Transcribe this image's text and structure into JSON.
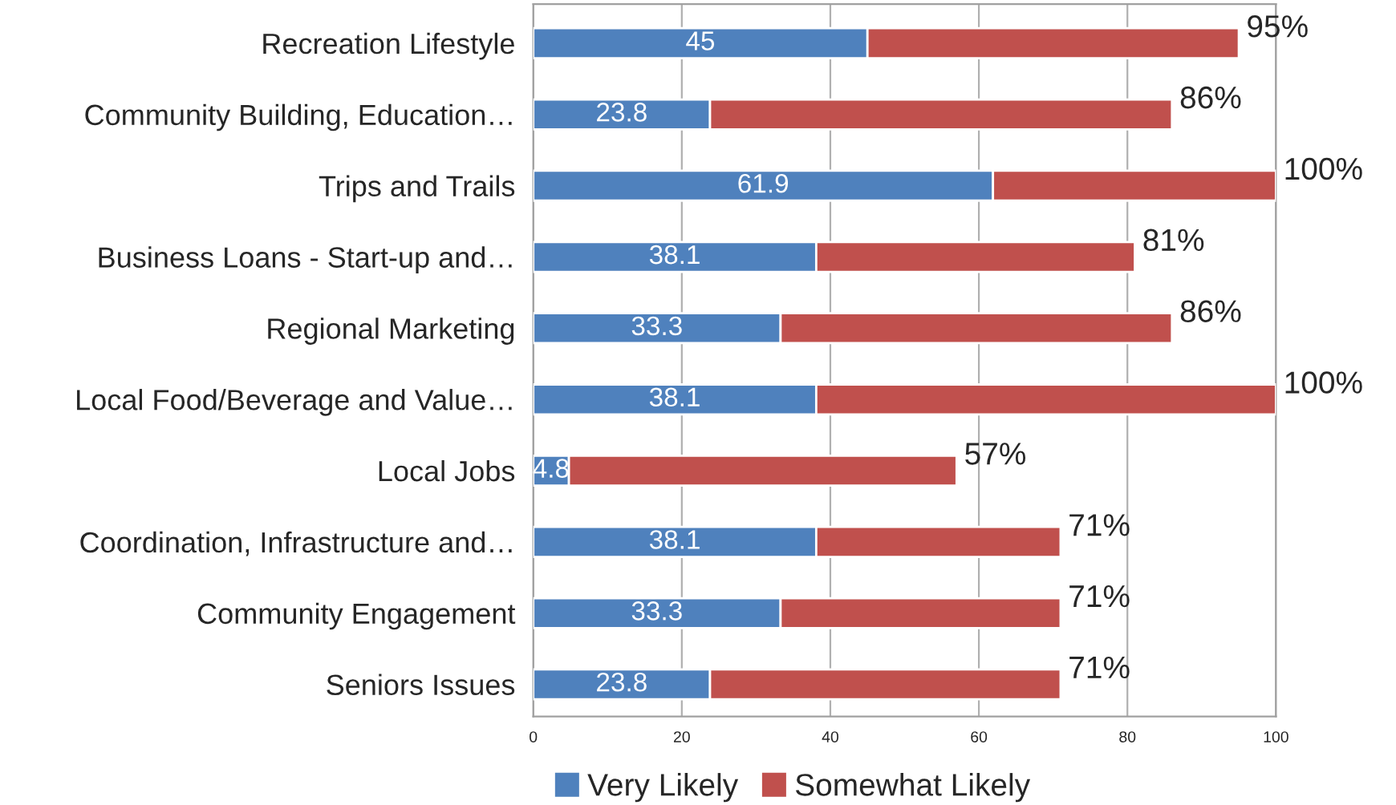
{
  "chart_data": {
    "type": "bar",
    "orientation": "horizontal",
    "stacked": true,
    "categories": [
      "Recreation Lifestyle",
      "Community Building, Education…",
      "Trips and Trails",
      "Business Loans - Start-up and…",
      "Regional Marketing",
      "Local Food/Beverage and Value…",
      "Local Jobs",
      "Coordination, Infrastructure and…",
      "Community Engagement",
      "Seniors Issues"
    ],
    "series": [
      {
        "name": "Very Likely",
        "color": "#4f81bd",
        "values": [
          45,
          23.8,
          61.9,
          38.1,
          33.3,
          38.1,
          4.8,
          38.1,
          33.3,
          23.8
        ],
        "value_labels": [
          "45",
          "23.8",
          "61.9",
          "38.1",
          "33.3",
          "38.1",
          "4.8",
          "38.1",
          "33.3",
          "23.8"
        ]
      },
      {
        "name": "Somewhat Likely",
        "color": "#c0504d",
        "values": [
          50,
          62.2,
          38.1,
          42.9,
          52.7,
          61.9,
          52.2,
          32.9,
          37.7,
          47.2
        ]
      }
    ],
    "totals": [
      "95%",
      "86%",
      "100%",
      "81%",
      "86%",
      "100%",
      "57%",
      "71%",
      "71%",
      "71%"
    ],
    "xlim": [
      0,
      100
    ],
    "xticks": [
      0,
      20,
      40,
      60,
      80,
      100
    ],
    "grid": "x",
    "legend": "bottom"
  }
}
